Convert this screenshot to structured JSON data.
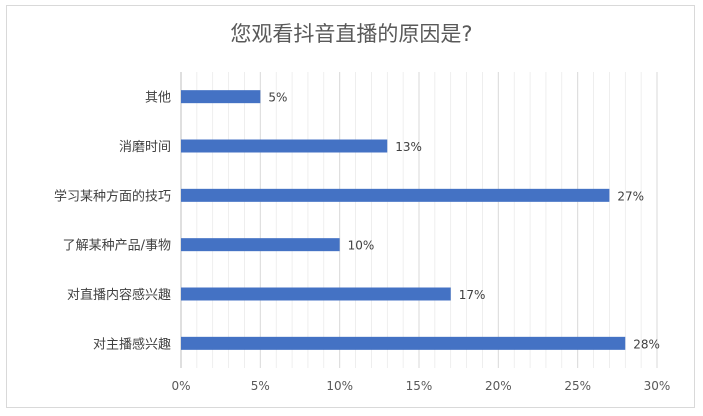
{
  "chart_data": {
    "type": "bar",
    "orientation": "horizontal",
    "title": "您观看抖音直播的原因是?",
    "xlabel": "",
    "ylabel": "",
    "categories": [
      "其他",
      "消磨时间",
      "学习某种方面的技巧",
      "了解某种产品/事物",
      "对直播内容感兴趣",
      "对主播感兴趣"
    ],
    "values": [
      5,
      13,
      27,
      10,
      17,
      28
    ],
    "data_labels": [
      "5%",
      "13%",
      "27%",
      "10%",
      "17%",
      "28%"
    ],
    "xlim": [
      0,
      30
    ],
    "x_ticks": [
      0,
      5,
      10,
      15,
      20,
      25,
      30
    ],
    "x_tick_labels": [
      "0%",
      "5%",
      "10%",
      "15%",
      "20%",
      "25%",
      "30%"
    ],
    "grid": "vertical",
    "legend": "none",
    "bar_color": "#4472c4",
    "grid_color": "#d9d9d9"
  }
}
